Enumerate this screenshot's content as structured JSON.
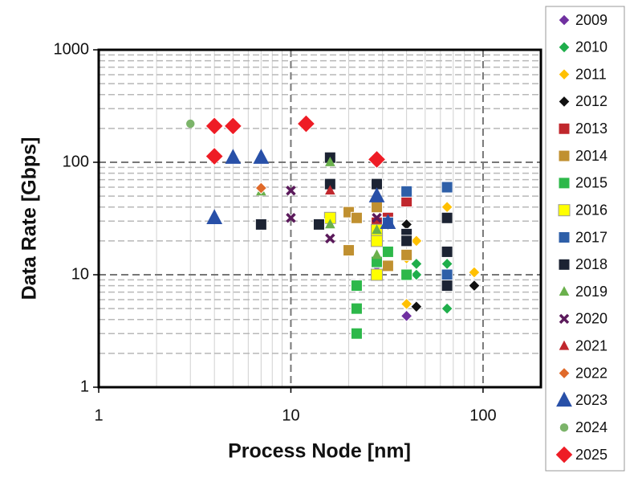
{
  "chart_data": {
    "type": "scatter",
    "x_label": "Process Node [nm]",
    "y_label": "Data Rate [Gbps]",
    "xlog": true,
    "ylog": true,
    "grid": true,
    "xlim": [
      1,
      200
    ],
    "ylim": [
      1,
      1000
    ],
    "xticks": [
      1,
      10,
      100
    ],
    "yticks": [
      1,
      10,
      100,
      1000
    ],
    "legend": "right",
    "series": [
      {
        "name": "2009",
        "color": "#7030a0",
        "marker": "diamond",
        "x": [
          40,
          28,
          65
        ],
        "values": [
          4.3,
          12,
          9
        ]
      },
      {
        "name": "2010",
        "color": "#1fae4b",
        "marker": "diamond",
        "x": [
          45,
          45,
          65,
          65,
          65,
          32
        ],
        "values": [
          10,
          12.5,
          5,
          12.5,
          40,
          12
        ]
      },
      {
        "name": "2011",
        "color": "#ffc000",
        "marker": "diamond",
        "x": [
          40,
          45,
          40,
          90,
          65,
          28,
          32
        ],
        "values": [
          5.5,
          20,
          14,
          10.5,
          40,
          20,
          12
        ]
      },
      {
        "name": "2012",
        "color": "#111111",
        "marker": "diamond",
        "x": [
          45,
          40,
          90,
          32
        ],
        "values": [
          5.2,
          28,
          8,
          28
        ]
      },
      {
        "name": "2013",
        "color": "#c0272d",
        "marker": "square",
        "x": [
          40,
          16,
          32,
          28
        ],
        "values": [
          45,
          63,
          32,
          29
        ]
      },
      {
        "name": "2014",
        "color": "#c09030",
        "marker": "square",
        "x": [
          20,
          22,
          20,
          28,
          40,
          32,
          28
        ],
        "values": [
          36,
          32,
          16.5,
          40,
          15,
          12,
          24
        ]
      },
      {
        "name": "2015",
        "color": "#2db84a",
        "marker": "square",
        "x": [
          22,
          22,
          22,
          28,
          32,
          40
        ],
        "values": [
          8,
          5,
          3,
          13,
          16,
          10
        ]
      },
      {
        "name": "2016",
        "color": "#ffff00",
        "marker": "square",
        "x": [
          16,
          28,
          28,
          28
        ],
        "values": [
          32,
          20,
          10,
          25
        ]
      },
      {
        "name": "2017",
        "color": "#2e5fa8",
        "marker": "square",
        "x": [
          40,
          65,
          65,
          32
        ],
        "values": [
          55,
          60,
          10,
          29
        ]
      },
      {
        "name": "2018",
        "color": "#1c2333",
        "marker": "square",
        "x": [
          16,
          7,
          14,
          28,
          40,
          40,
          65,
          65,
          65,
          16
        ],
        "values": [
          110,
          28,
          28,
          64,
          23,
          20,
          32,
          16,
          8,
          64
        ]
      },
      {
        "name": "2019",
        "color": "#6ab04c",
        "marker": "triangle",
        "x": [
          16,
          7,
          28,
          28,
          16
        ],
        "values": [
          100,
          55,
          15,
          25,
          28
        ]
      },
      {
        "name": "2020",
        "color": "#5b1a5b",
        "marker": "x",
        "x": [
          10,
          10,
          16,
          28
        ],
        "values": [
          56,
          32,
          21,
          32
        ]
      },
      {
        "name": "2021",
        "color": "#c0272d",
        "marker": "triangle",
        "x": [
          16,
          5,
          7
        ],
        "values": [
          56,
          110,
          110
        ]
      },
      {
        "name": "2022",
        "color": "#e06a2a",
        "marker": "diamond",
        "x": [
          7
        ],
        "values": [
          59
        ]
      },
      {
        "name": "2023",
        "color": "#2850a8",
        "marker": "big-triangle",
        "x": [
          4,
          5,
          7,
          28,
          32
        ],
        "values": [
          32,
          110,
          110,
          50,
          29
        ]
      },
      {
        "name": "2024",
        "color": "#7cb46a",
        "marker": "circle",
        "x": [
          3
        ],
        "values": [
          220
        ]
      },
      {
        "name": "2025",
        "color": "#ee1c25",
        "marker": "big-diamond",
        "x": [
          4,
          5,
          12,
          4,
          28
        ],
        "values": [
          210,
          210,
          220,
          113,
          106
        ]
      }
    ]
  }
}
